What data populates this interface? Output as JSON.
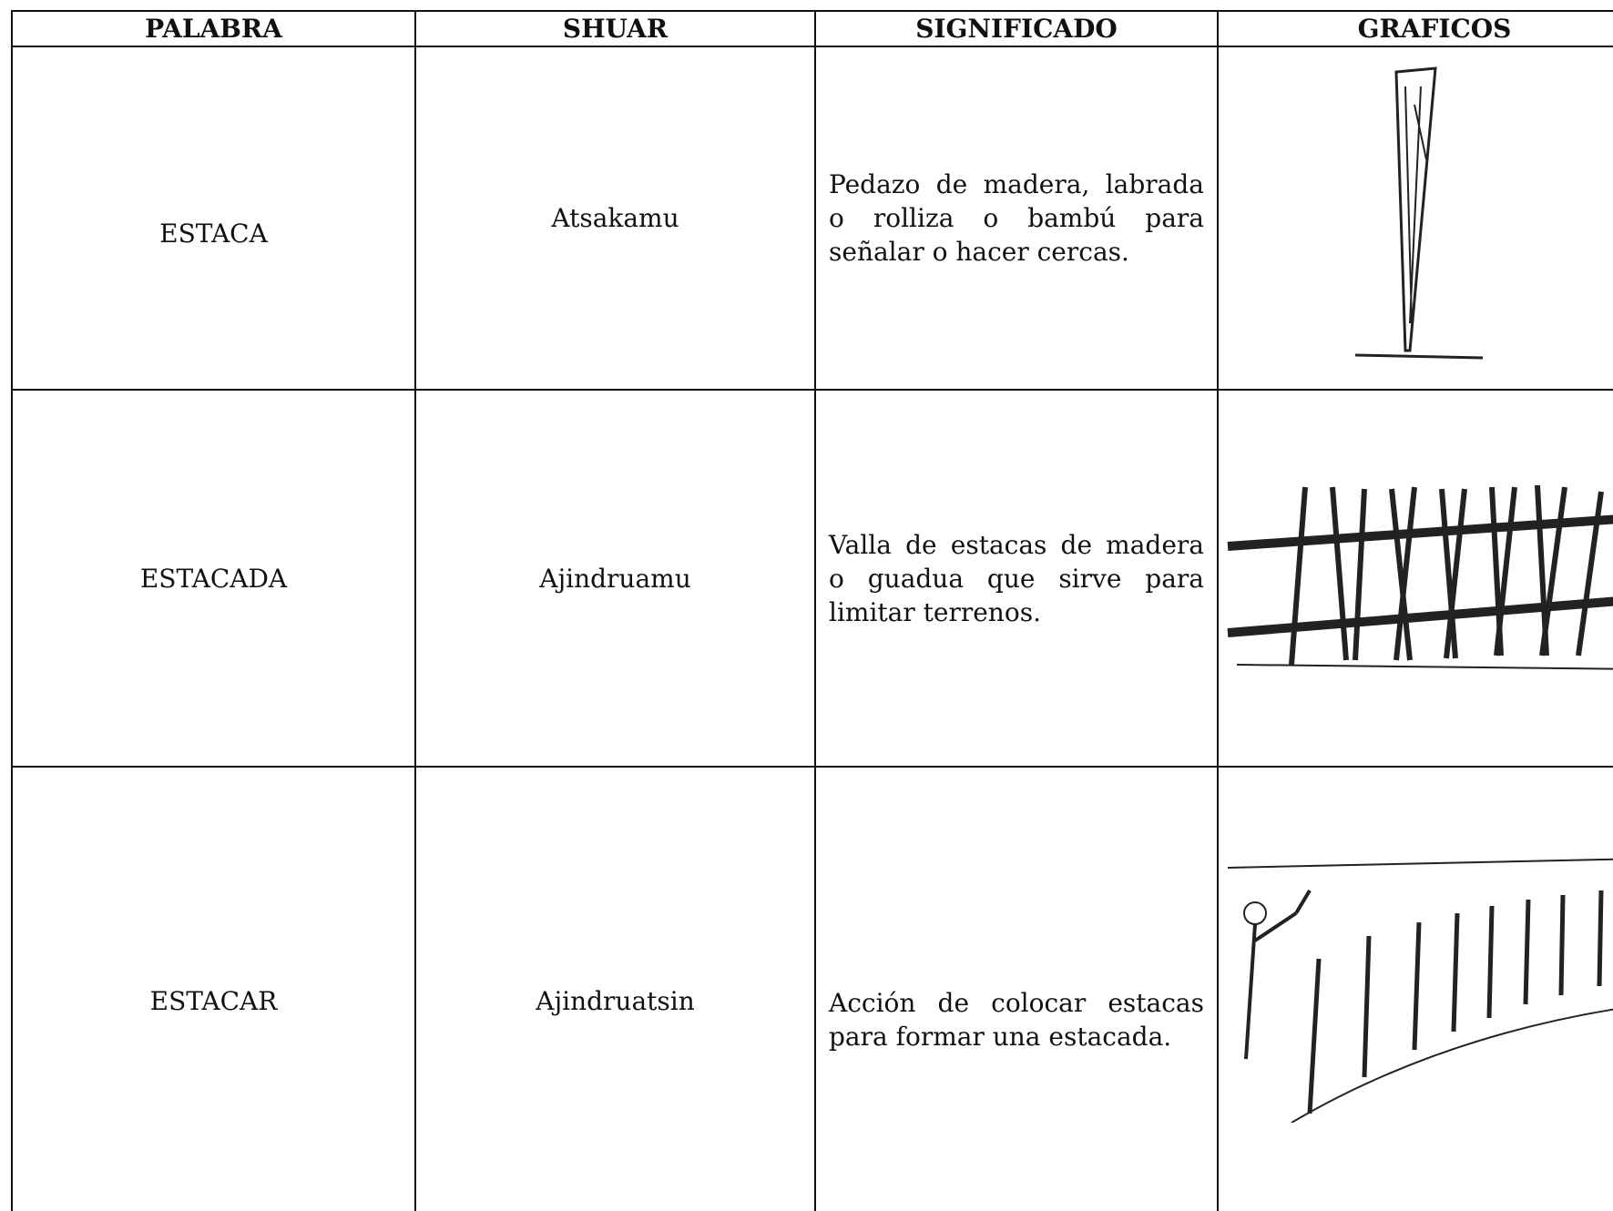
{
  "table": {
    "header": [
      "PALABRA",
      "SHUAR",
      "SIGNIFICADO",
      "GRAFICOS"
    ],
    "rows": [
      [
        "ESTACA",
        "Atsakamu",
        "Pedazo de madera, labrada o rolliza o bambú para señalar o hacer cercas."
      ],
      [
        "ESTACADA",
        "Ajindruamu",
        "Valla de estacas de madera o guadua que sirve para limitar terrenos."
      ],
      [
        "ESTACAR",
        "Ajindruatsin",
        "Acción de colocar estacas para formar una estacada."
      ]
    ]
  }
}
